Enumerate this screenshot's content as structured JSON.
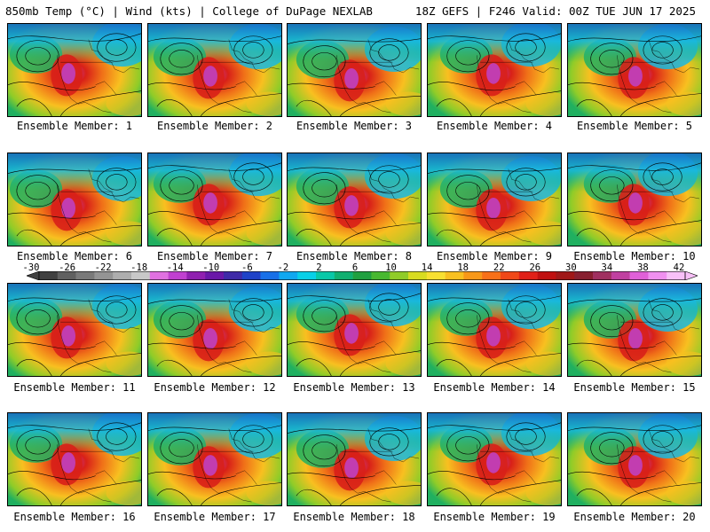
{
  "header": {
    "left": "850mb Temp (°C) | Wind (kts) | College of DuPage NEXLAB",
    "right": "18Z GEFS | F246 Valid: 00Z TUE JUN 17 2025"
  },
  "panels": [
    {
      "caption": "Ensemble Member: 1"
    },
    {
      "caption": "Ensemble Member: 2"
    },
    {
      "caption": "Ensemble Member: 3"
    },
    {
      "caption": "Ensemble Member: 4"
    },
    {
      "caption": "Ensemble Member: 5"
    },
    {
      "caption": "Ensemble Member: 6"
    },
    {
      "caption": "Ensemble Member: 7"
    },
    {
      "caption": "Ensemble Member: 8"
    },
    {
      "caption": "Ensemble Member: 9"
    },
    {
      "caption": "Ensemble Member: 10"
    },
    {
      "caption": "Ensemble Member: 11"
    },
    {
      "caption": "Ensemble Member: 12"
    },
    {
      "caption": "Ensemble Member: 13"
    },
    {
      "caption": "Ensemble Member: 14"
    },
    {
      "caption": "Ensemble Member: 15"
    },
    {
      "caption": "Ensemble Member: 16"
    },
    {
      "caption": "Ensemble Member: 17"
    },
    {
      "caption": "Ensemble Member: 18"
    },
    {
      "caption": "Ensemble Member: 19"
    },
    {
      "caption": "Ensemble Member: 20"
    }
  ],
  "colorbar": {
    "ticks": [
      "-30",
      "-26",
      "-22",
      "-18",
      "-14",
      "-10",
      "-6",
      "-2",
      "2",
      "6",
      "10",
      "14",
      "18",
      "22",
      "26",
      "30",
      "34",
      "38",
      "42"
    ],
    "colors": [
      "#404040",
      "#606060",
      "#7a7a7a",
      "#949494",
      "#aeaeae",
      "#c8c8c8",
      "#e070e0",
      "#c040d0",
      "#9020b0",
      "#6a18a8",
      "#3f2aa8",
      "#1f42c8",
      "#1870e8",
      "#10a8f0",
      "#08d0e8",
      "#08c8a8",
      "#10b070",
      "#20a040",
      "#48b830",
      "#90cc28",
      "#d8dc20",
      "#f8e030",
      "#f8c020",
      "#f89818",
      "#f87018",
      "#f04818",
      "#e02018",
      "#c01010",
      "#a01818",
      "#882030",
      "#a03060",
      "#c040a0",
      "#e060d8",
      "#f090f0",
      "#f8c0f8"
    ]
  },
  "field_colors": {
    "deep_cold": "#1868c8",
    "cold": "#18b8e0",
    "cool": "#20b060",
    "mild": "#90cc28",
    "warm": "#f8c020",
    "hot": "#f07018",
    "very_hot": "#d82018",
    "extreme": "#c040c0"
  }
}
